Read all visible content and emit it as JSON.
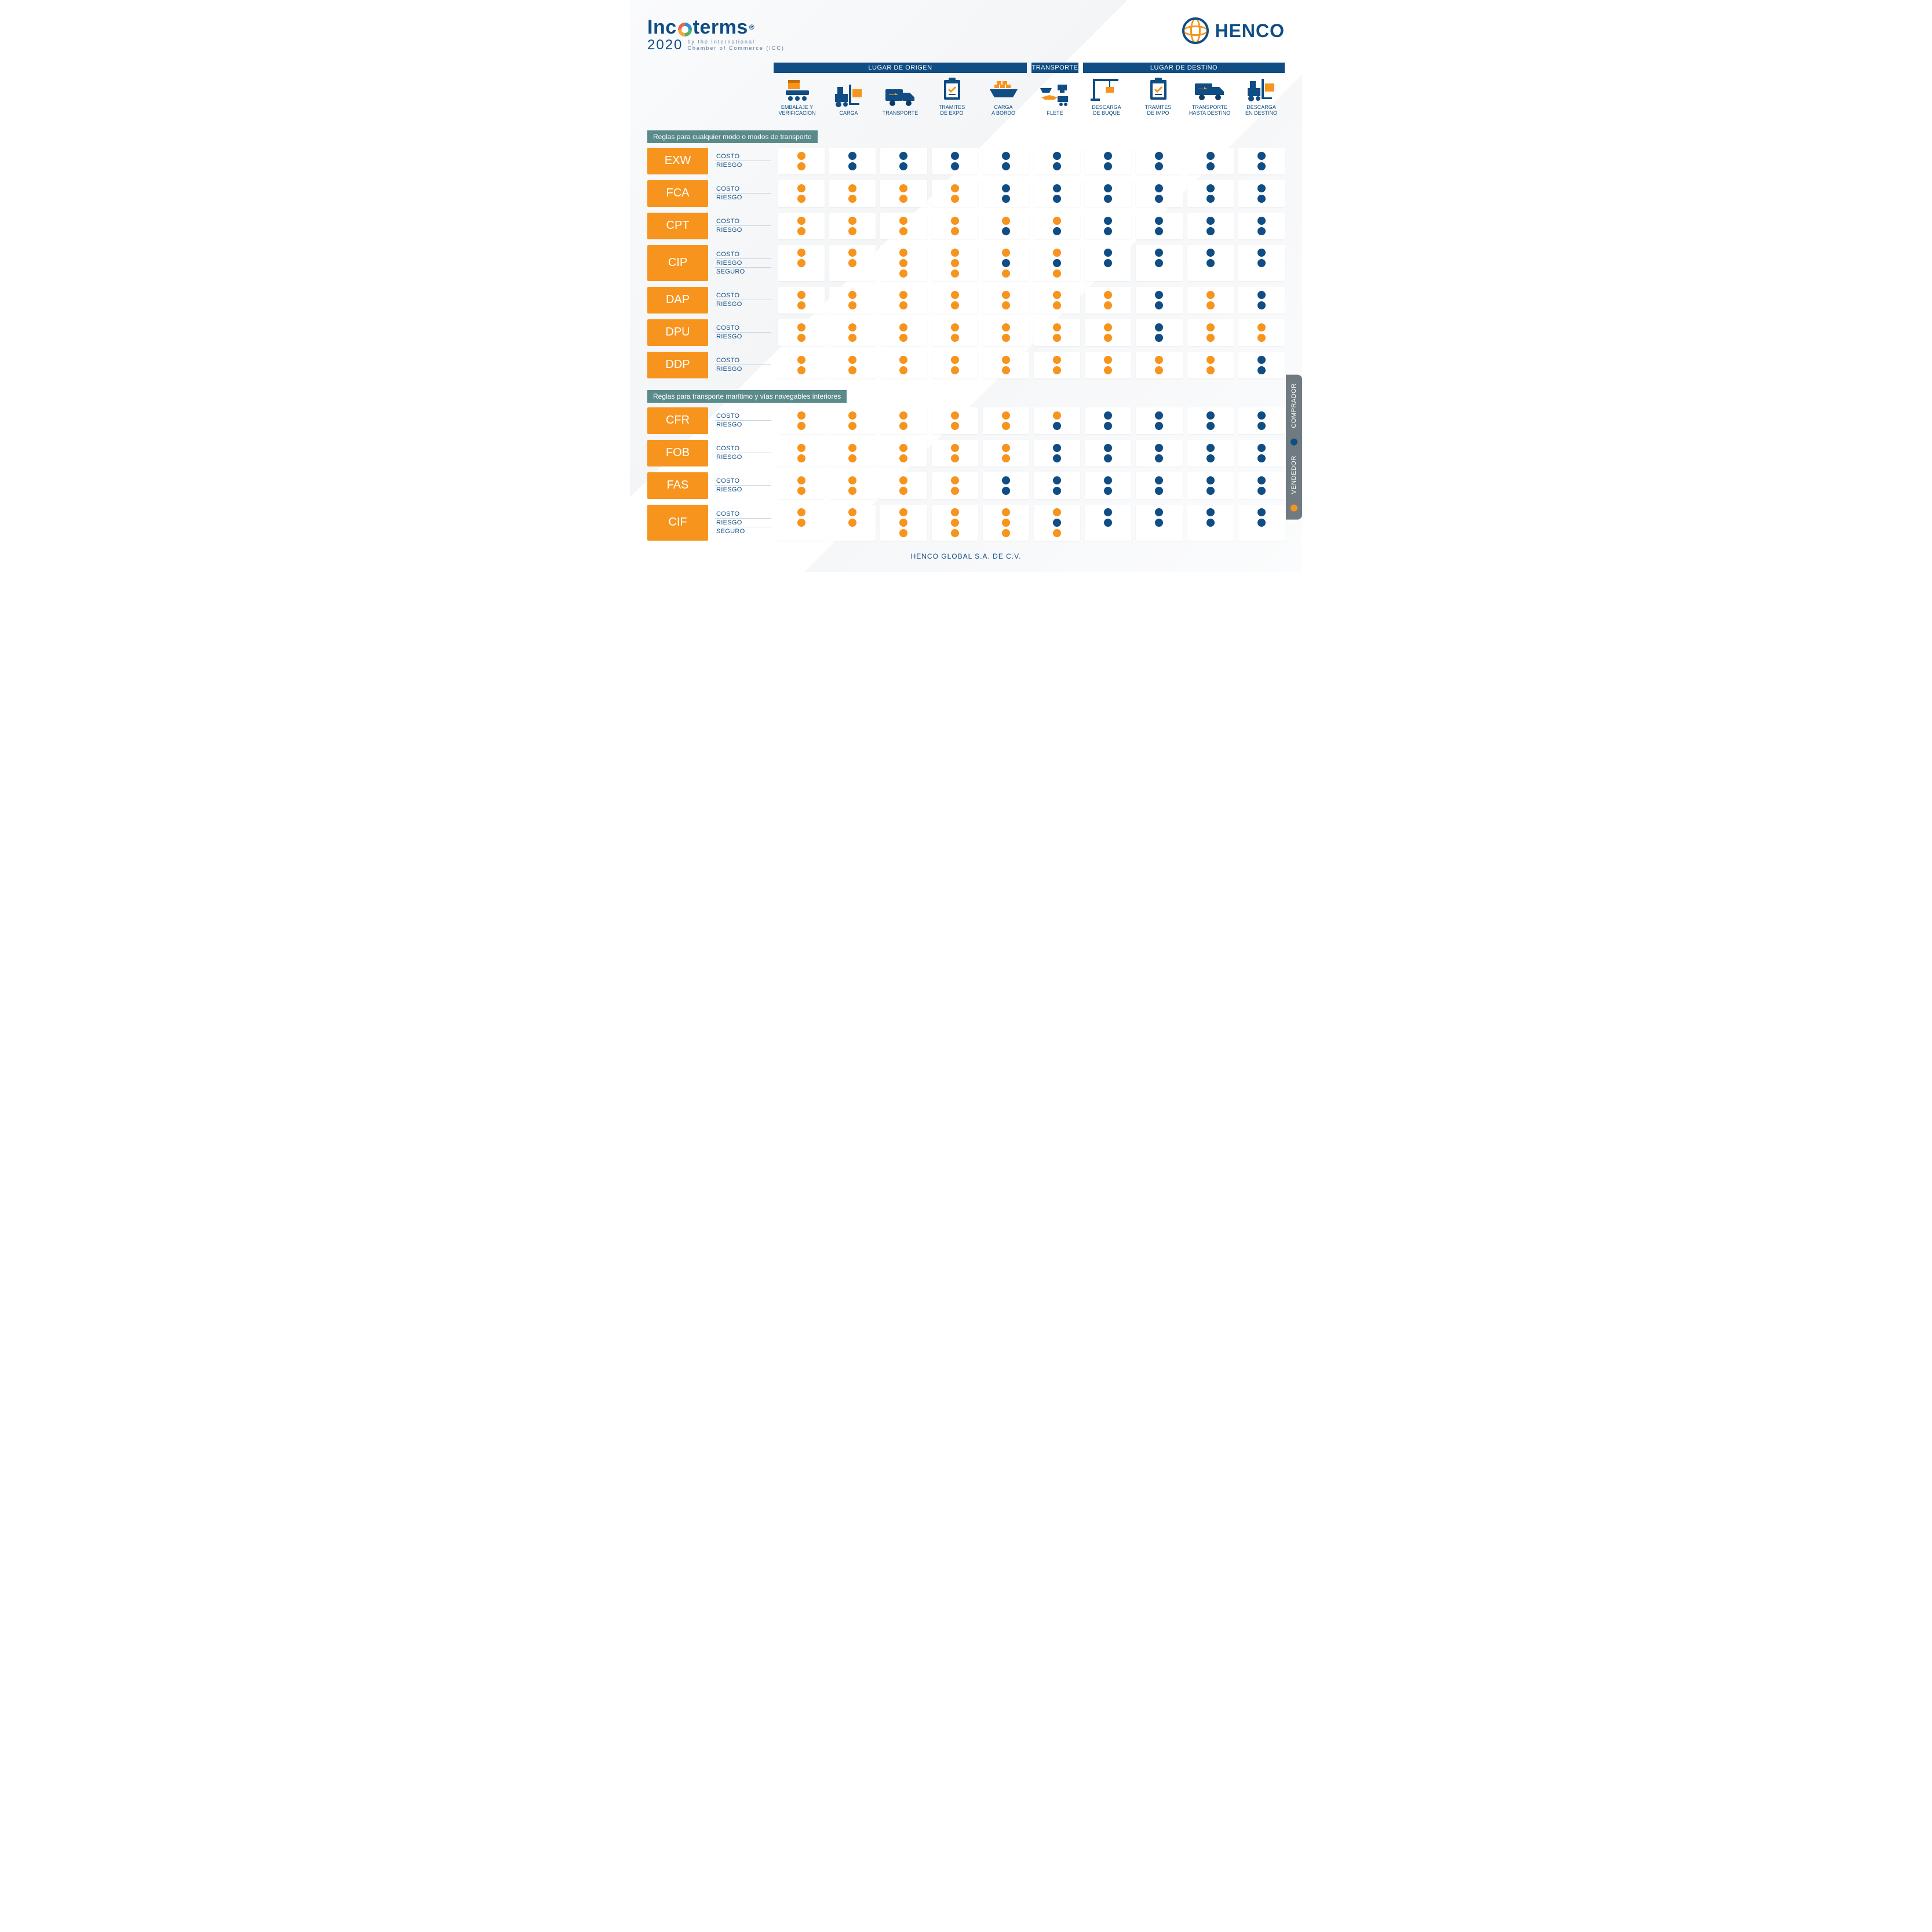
{
  "colors": {
    "blue": "#0f4d84",
    "orange": "#f7941d",
    "teal": "#5a8a8a",
    "card": "#ffffff",
    "grey_bg": "#f0f1f3",
    "legend_bg": "#6f7b80"
  },
  "header": {
    "incoterms_word": "Inc   terms",
    "incoterms_year": "2020",
    "incoterms_sub1": "by the International",
    "incoterms_sub2": "Chamber of Commerce (ICC)",
    "henco": "HENCO",
    "registered": "®"
  },
  "section_bars": [
    {
      "label": "LUGAR DE ORIGEN",
      "span": 5
    },
    {
      "label": "TRANSPORTE",
      "span": 1
    },
    {
      "label": "LUGAR DE DESTINO",
      "span": 4
    }
  ],
  "columns": [
    {
      "label": "EMBALAJE Y\nVERIFICACION",
      "icon": "pack"
    },
    {
      "label": "CARGA",
      "icon": "forklift"
    },
    {
      "label": "TRANSPORTE",
      "icon": "truck"
    },
    {
      "label": "TRAMITES\nDE EXPO",
      "icon": "clipboard"
    },
    {
      "label": "CARGA\nA BORDO",
      "icon": "ship"
    },
    {
      "label": "FLETE",
      "icon": "multi"
    },
    {
      "label": "DESCARGA\nDE BUQUE",
      "icon": "crane"
    },
    {
      "label": "TRAMITES\nDE  IMPO",
      "icon": "clipboard"
    },
    {
      "label": "TRANSPORTE\nHASTA DESTINO",
      "icon": "truck"
    },
    {
      "label": "DESCARGA\nEN DESTINO",
      "icon": "forklift"
    }
  ],
  "row_labels": {
    "costo": "COSTO",
    "riesgo": "RIESGO",
    "seguro": "SEGURO"
  },
  "groups": [
    {
      "title": "Reglas para cualquier modo o modos de transporte",
      "terms": [
        {
          "code": "EXW",
          "rows": [
            "costo",
            "riesgo"
          ],
          "data": {
            "costo": [
              "v",
              "c",
              "c",
              "c",
              "c",
              "c",
              "c",
              "c",
              "c",
              "c"
            ],
            "riesgo": [
              "v",
              "c",
              "c",
              "c",
              "c",
              "c",
              "c",
              "c",
              "c",
              "c"
            ]
          }
        },
        {
          "code": "FCA",
          "rows": [
            "costo",
            "riesgo"
          ],
          "data": {
            "costo": [
              "v",
              "v",
              "v",
              "v",
              "c",
              "c",
              "c",
              "c",
              "c",
              "c"
            ],
            "riesgo": [
              "v",
              "v",
              "v",
              "v",
              "c",
              "c",
              "c",
              "c",
              "c",
              "c"
            ]
          }
        },
        {
          "code": "CPT",
          "rows": [
            "costo",
            "riesgo"
          ],
          "data": {
            "costo": [
              "v",
              "v",
              "v",
              "v",
              "v",
              "v",
              "c",
              "c",
              "c",
              "c"
            ],
            "riesgo": [
              "v",
              "v",
              "v",
              "v",
              "c",
              "c",
              "c",
              "c",
              "c",
              "c"
            ]
          }
        },
        {
          "code": "CIP",
          "rows": [
            "costo",
            "riesgo",
            "seguro"
          ],
          "data": {
            "costo": [
              "v",
              "v",
              "v",
              "v",
              "v",
              "v",
              "c",
              "c",
              "c",
              "c"
            ],
            "riesgo": [
              "v",
              "v",
              "v",
              "v",
              "c",
              "c",
              "c",
              "c",
              "c",
              "c"
            ],
            "seguro": [
              "",
              "",
              "v",
              "v",
              "v",
              "v",
              "",
              "",
              "",
              ""
            ]
          }
        },
        {
          "code": "DAP",
          "rows": [
            "costo",
            "riesgo"
          ],
          "data": {
            "costo": [
              "v",
              "v",
              "v",
              "v",
              "v",
              "v",
              "v",
              "c",
              "v",
              "c"
            ],
            "riesgo": [
              "v",
              "v",
              "v",
              "v",
              "v",
              "v",
              "v",
              "c",
              "v",
              "c"
            ]
          }
        },
        {
          "code": "DPU",
          "rows": [
            "costo",
            "riesgo"
          ],
          "data": {
            "costo": [
              "v",
              "v",
              "v",
              "v",
              "v",
              "v",
              "v",
              "c",
              "v",
              "v"
            ],
            "riesgo": [
              "v",
              "v",
              "v",
              "v",
              "v",
              "v",
              "v",
              "c",
              "v",
              "v"
            ]
          }
        },
        {
          "code": "DDP",
          "rows": [
            "costo",
            "riesgo"
          ],
          "data": {
            "costo": [
              "v",
              "v",
              "v",
              "v",
              "v",
              "v",
              "v",
              "v",
              "v",
              "c"
            ],
            "riesgo": [
              "v",
              "v",
              "v",
              "v",
              "v",
              "v",
              "v",
              "v",
              "v",
              "c"
            ]
          }
        }
      ]
    },
    {
      "title": "Reglas para transporte marítimo y vías navegables interiores",
      "terms": [
        {
          "code": "CFR",
          "rows": [
            "costo",
            "riesgo"
          ],
          "data": {
            "costo": [
              "v",
              "v",
              "v",
              "v",
              "v",
              "v",
              "c",
              "c",
              "c",
              "c"
            ],
            "riesgo": [
              "v",
              "v",
              "v",
              "v",
              "v",
              "c",
              "c",
              "c",
              "c",
              "c"
            ]
          }
        },
        {
          "code": "FOB",
          "rows": [
            "costo",
            "riesgo"
          ],
          "data": {
            "costo": [
              "v",
              "v",
              "v",
              "v",
              "v",
              "c",
              "c",
              "c",
              "c",
              "c"
            ],
            "riesgo": [
              "v",
              "v",
              "v",
              "v",
              "v",
              "c",
              "c",
              "c",
              "c",
              "c"
            ]
          }
        },
        {
          "code": "FAS",
          "rows": [
            "costo",
            "riesgo"
          ],
          "data": {
            "costo": [
              "v",
              "v",
              "v",
              "v",
              "c",
              "c",
              "c",
              "c",
              "c",
              "c"
            ],
            "riesgo": [
              "v",
              "v",
              "v",
              "v",
              "c",
              "c",
              "c",
              "c",
              "c",
              "c"
            ]
          }
        },
        {
          "code": "CIF",
          "rows": [
            "costo",
            "riesgo",
            "seguro"
          ],
          "data": {
            "costo": [
              "v",
              "v",
              "v",
              "v",
              "v",
              "v",
              "c",
              "c",
              "c",
              "c"
            ],
            "riesgo": [
              "v",
              "v",
              "v",
              "v",
              "v",
              "c",
              "c",
              "c",
              "c",
              "c"
            ],
            "seguro": [
              "",
              "",
              "v",
              "v",
              "v",
              "v",
              "",
              "",
              "",
              ""
            ]
          }
        }
      ]
    }
  ],
  "legend": {
    "vendedor": "VENDEDOR",
    "comprador": "COMPRADOR"
  },
  "footer": "HENCO GLOBAL S.A. DE C.V."
}
